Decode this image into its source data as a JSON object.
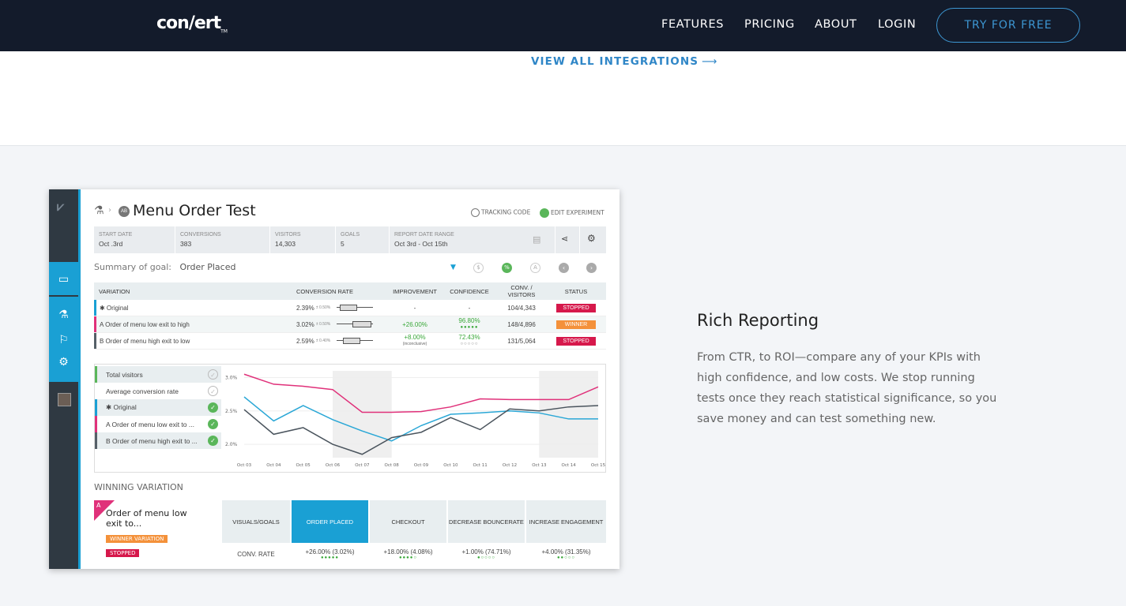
{
  "nav": {
    "logo": "con/ert",
    "logo_tm": "TM",
    "features": "FEATURES",
    "pricing": "PRICING",
    "about": "ABOUT",
    "login": "LOGIN",
    "try": "TRY FOR FREE"
  },
  "integrations": {
    "view_all": "VIEW ALL INTEGRATIONS",
    "arrow": "⟶"
  },
  "feature": {
    "title": "Rich Reporting",
    "body": "From CTR, to ROI—compare any of your KPIs with high confidence, and low costs. We stop running tests once they reach statistical significance, so you save money and can test something new."
  },
  "report": {
    "ab": "AB",
    "title": "Menu Order Test",
    "tracking": "TRACKING CODE",
    "edit": "EDIT EXPERIMENT",
    "info": [
      {
        "label": "START DATE",
        "value": "Oct .3rd"
      },
      {
        "label": "CONVERSIONS",
        "value": "383"
      },
      {
        "label": "VISITORS",
        "value": "14,303"
      },
      {
        "label": "GOALS",
        "value": "5"
      },
      {
        "label": "REPORT DATE RANGE",
        "value": "Oct 3rd - Oct 15th"
      }
    ],
    "summary_label": "Summary of goal:",
    "summary_goal": "Order Placed",
    "headers": {
      "variation": "VARIATION",
      "conv_rate": "CONVERSION RATE",
      "improvement": "IMPROVEMENT",
      "confidence": "CONFIDENCE",
      "conv_visitors": "CONV. / VISITORS",
      "status": "STATUS"
    },
    "rows": [
      {
        "name": "✱ Original",
        "rate": "2.39%",
        "rate_err": "± 0.50%",
        "improvement": "-",
        "improvement_note": "",
        "confidence": "-",
        "confidence_dots": "",
        "conv": "104/4,343",
        "status": "STOPPED",
        "status_color": "#d6184b",
        "bar_color": "#1aa0d4"
      },
      {
        "name": "A  Order of menu low exit to high",
        "rate": "3.02%",
        "rate_err": "± 0.50%",
        "improvement": "+26.00%",
        "improvement_note": "",
        "confidence": "96.80%",
        "confidence_dots": "●●●●●",
        "conv": "148/4,896",
        "status": "WINNER",
        "status_color": "#f4913a",
        "bar_color": "#e0317a"
      },
      {
        "name": "B  Order of menu high exit to low",
        "rate": "2.59%",
        "rate_err": "± 0.40%",
        "improvement": "+8.00%",
        "improvement_note": "(inconclusive)",
        "confidence": "72.43%",
        "confidence_dots": "○○○○○",
        "conv": "131/5,064",
        "status": "STOPPED",
        "status_color": "#d6184b",
        "bar_color": "#555f68"
      }
    ],
    "legend": [
      {
        "label": "Total visitors",
        "checked": false,
        "bar": "#5ab65a"
      },
      {
        "label": "Average conversion rate",
        "checked": false,
        "bar": "#e8eef0"
      },
      {
        "label": "✱ Original",
        "checked": true,
        "bar": "#1aa0d4"
      },
      {
        "label": "A  Order of menu low exit to ...",
        "checked": true,
        "bar": "#e0317a"
      },
      {
        "label": "B  Order of menu high exit to ...",
        "checked": true,
        "bar": "#555f68"
      }
    ],
    "winning_label": "WINNING VARIATION",
    "winner": {
      "letter": "A",
      "name": "Order of menu low exit to...",
      "badge1": "WINNER VARIATION",
      "badge2": "STOPPED"
    },
    "goals_header": "VISUALS/GOALS",
    "conv_rate_label": "CONV. RATE",
    "goals": [
      {
        "name": "ORDER PLACED",
        "value": "+26.00%  (3.02%)",
        "dots": "●●●●●",
        "active": true
      },
      {
        "name": "CHECKOUT",
        "value": "+18.00%  (4.08%)",
        "dots": "●●●●○",
        "active": false
      },
      {
        "name": "DECREASE BOUNCERATE",
        "value": "+1.00%  (74.71%)",
        "dots": "●○○○○",
        "active": false
      },
      {
        "name": "INCREASE ENGAGEMENT",
        "value": "+4.00%  (31.35%)",
        "dots": "●●○○○",
        "active": false
      }
    ]
  },
  "chart_data": {
    "type": "line",
    "x": [
      "Oct 03",
      "Oct 04",
      "Oct 05",
      "Oct 06",
      "Oct 07",
      "Oct 08",
      "Oct 09",
      "Oct 10",
      "Oct 11",
      "Oct 12",
      "Oct 13",
      "Oct 14",
      "Oct 15"
    ],
    "y_ticks": [
      "3.0%",
      "2.5%",
      "2.0%"
    ],
    "ylim": [
      1.8,
      3.1
    ],
    "series": [
      {
        "color": "#e0317a",
        "values": [
          3.05,
          2.9,
          2.87,
          2.82,
          2.48,
          2.48,
          2.49,
          2.56,
          2.68,
          2.67,
          2.67,
          2.67,
          2.86
        ]
      },
      {
        "color": "#2aa7d6",
        "values": [
          2.71,
          2.35,
          2.58,
          2.37,
          2.2,
          2.05,
          2.28,
          2.45,
          2.47,
          2.5,
          2.47,
          2.38,
          2.38
        ]
      },
      {
        "color": "#4a545d",
        "values": [
          2.52,
          2.15,
          2.25,
          2.0,
          1.85,
          2.1,
          2.18,
          2.4,
          2.22,
          2.53,
          2.5,
          2.56,
          2.58
        ]
      }
    ]
  }
}
